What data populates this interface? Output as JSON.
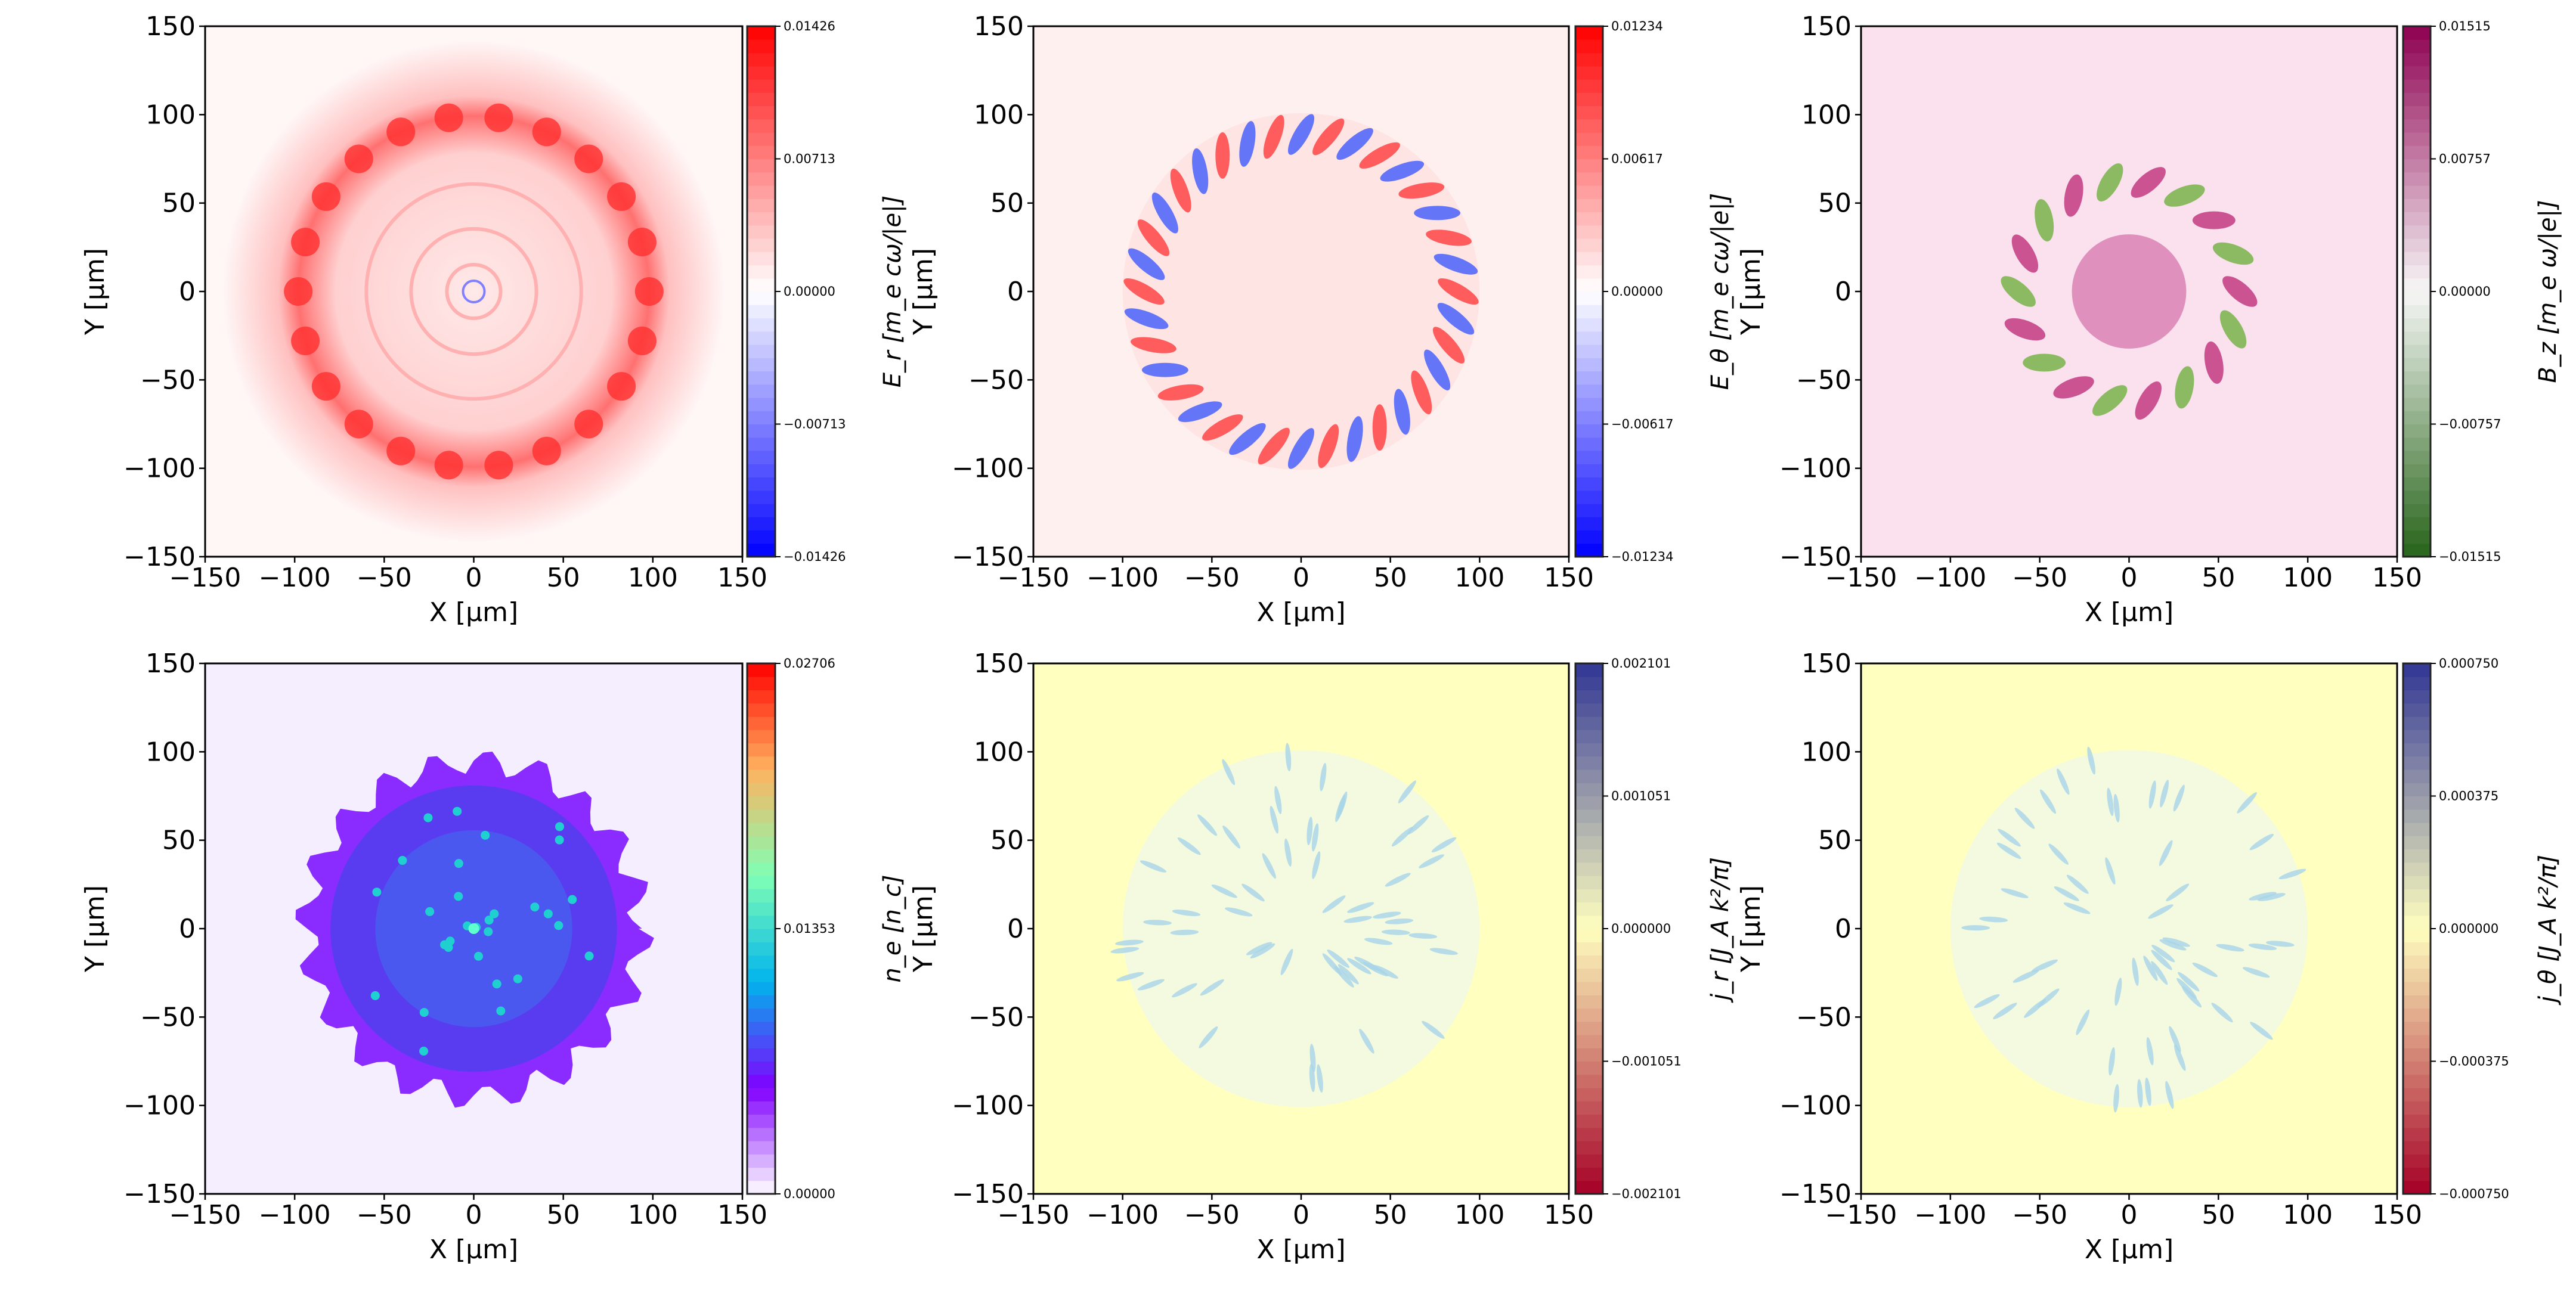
{
  "chart_data": [
    {
      "type": "heatmap",
      "xlabel": "X  [μm]",
      "ylabel": "Y  [μm]",
      "xlim": [
        -150,
        150
      ],
      "ylim": [
        -150,
        150
      ],
      "xticks": [
        -150,
        -100,
        -50,
        0,
        50,
        100,
        150
      ],
      "yticks": [
        -150,
        -100,
        -50,
        0,
        50,
        100,
        150
      ],
      "colormap": "bwr",
      "colorbar": {
        "label": "E_r [m_e cω/|e|]",
        "range": [
          -0.01426,
          0.01426
        ],
        "ticks": [
          "0.01426",
          "0.00713",
          "0.00000",
          "−0.00713",
          "−0.01426"
        ]
      }
    },
    {
      "type": "heatmap",
      "xlabel": "X  [μm]",
      "ylabel": "Y  [μm]",
      "xlim": [
        -150,
        150
      ],
      "ylim": [
        -150,
        150
      ],
      "xticks": [
        -150,
        -100,
        -50,
        0,
        50,
        100,
        150
      ],
      "yticks": [
        -150,
        -100,
        -50,
        0,
        50,
        100,
        150
      ],
      "colormap": "bwr",
      "colorbar": {
        "label": "E_θ [m_e cω/|e|]",
        "range": [
          -0.01234,
          0.01234
        ],
        "ticks": [
          "0.01234",
          "0.00617",
          "0.00000",
          "−0.00617",
          "−0.01234"
        ]
      }
    },
    {
      "type": "heatmap",
      "xlabel": "X  [μm]",
      "ylabel": "Y  [μm]",
      "xlim": [
        -150,
        150
      ],
      "ylim": [
        -150,
        150
      ],
      "xticks": [
        -150,
        -100,
        -50,
        0,
        50,
        100,
        150
      ],
      "yticks": [
        -150,
        -100,
        -50,
        0,
        50,
        100,
        150
      ],
      "colormap": "PiYG",
      "colorbar": {
        "label": "B_z [m_e ω/|e|]",
        "range": [
          -0.01515,
          0.01515
        ],
        "ticks": [
          "0.01515",
          "0.00757",
          "0.00000",
          "−0.00757",
          "−0.01515"
        ]
      }
    },
    {
      "type": "heatmap",
      "xlabel": "X  [μm]",
      "ylabel": "Y  [μm]",
      "xlim": [
        -150,
        150
      ],
      "ylim": [
        -150,
        150
      ],
      "xticks": [
        -150,
        -100,
        -50,
        0,
        50,
        100,
        150
      ],
      "yticks": [
        -150,
        -100,
        -50,
        0,
        50,
        100,
        150
      ],
      "colormap": "rainbow",
      "colorbar": {
        "label": "n_e [n_c]",
        "range": [
          0,
          0.02706
        ],
        "ticks": [
          "0.02706",
          "0.01353",
          "0.00000"
        ]
      }
    },
    {
      "type": "heatmap",
      "xlabel": "X  [μm]",
      "ylabel": "Y  [μm]",
      "xlim": [
        -150,
        150
      ],
      "ylim": [
        -150,
        150
      ],
      "xticks": [
        -150,
        -100,
        -50,
        0,
        50,
        100,
        150
      ],
      "yticks": [
        -150,
        -100,
        -50,
        0,
        50,
        100,
        150
      ],
      "colormap": "RdYlBu",
      "colorbar": {
        "label": "j_r [J_A k²/π]",
        "range": [
          -0.002101,
          0.002101
        ],
        "ticks": [
          "0.002101",
          "0.001051",
          "0.000000",
          "−0.001051",
          "−0.002101"
        ]
      }
    },
    {
      "type": "heatmap",
      "xlabel": "X  [μm]",
      "ylabel": "Y  [μm]",
      "xlim": [
        -150,
        150
      ],
      "ylim": [
        -150,
        150
      ],
      "xticks": [
        -150,
        -100,
        -50,
        0,
        50,
        100,
        150
      ],
      "yticks": [
        -150,
        -100,
        -50,
        0,
        50,
        100,
        150
      ],
      "colormap": "RdYlBu",
      "colorbar": {
        "label": "j_θ [J_A k²/π]",
        "range": [
          -0.00075,
          0.00075
        ],
        "ticks": [
          "0.000750",
          "0.000375",
          "0.000000",
          "−0.000375",
          "−0.000750"
        ]
      }
    }
  ],
  "colors": {
    "bwr": [
      "#0000ff",
      "#ffffff",
      "#ff0000"
    ],
    "PiYG": [
      "#276419",
      "#f7f7f7",
      "#8e0152"
    ],
    "rainbow": [
      "#ffffff",
      "#8000ff",
      "#00b4ec",
      "#80ffb4",
      "#ffb360",
      "#ff0000"
    ],
    "RdYlBu": [
      "#a50026",
      "#ffffbf",
      "#313695"
    ]
  }
}
